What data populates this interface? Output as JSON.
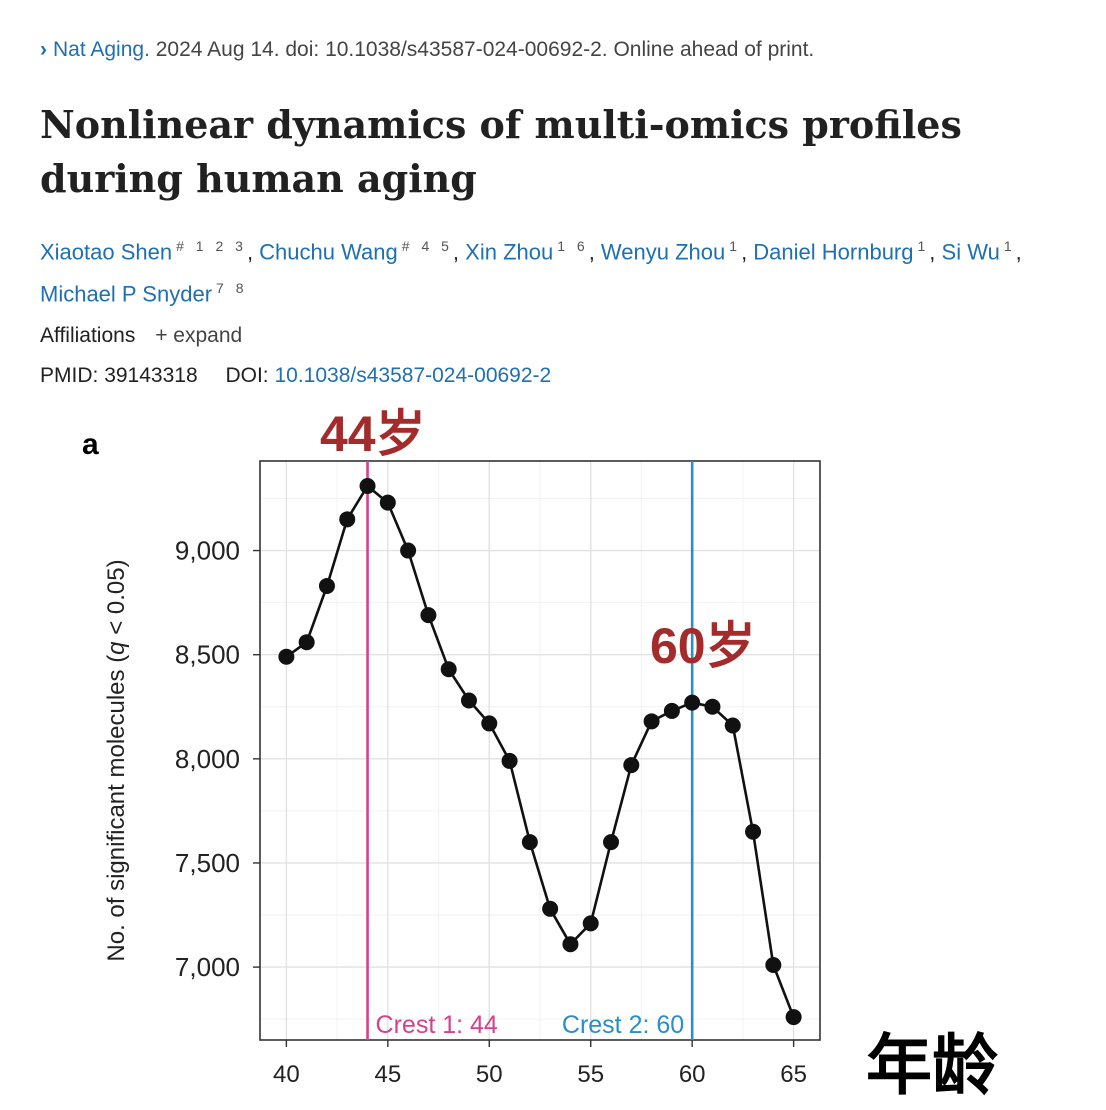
{
  "citation": {
    "chevron": "›",
    "journal": "Nat Aging.",
    "details": "2024 Aug 14. doi: 10.1038/s43587-024-00692-2. Online ahead of print."
  },
  "title": "Nonlinear dynamics of multi-omics profiles during human aging",
  "authors": [
    {
      "name": "Xiaotao Shen",
      "sup": "# 1 2 3"
    },
    {
      "name": "Chuchu Wang",
      "sup": "# 4 5"
    },
    {
      "name": "Xin Zhou",
      "sup": "1 6"
    },
    {
      "name": "Wenyu Zhou",
      "sup": "1"
    },
    {
      "name": "Daniel Hornburg",
      "sup": "1"
    },
    {
      "name": "Si Wu",
      "sup": "1"
    },
    {
      "name": "Michael P Snyder",
      "sup": "7 8"
    }
  ],
  "affiliations": {
    "label": "Affiliations",
    "expand": "+ expand"
  },
  "ids": {
    "pmid_label": "PMID:",
    "pmid": "39143318",
    "doi_label": "DOI:",
    "doi": "10.1038/s43587-024-00692-2"
  },
  "figure": {
    "panel_letter": "a",
    "annotation_44": "44岁",
    "annotation_60": "60岁",
    "age_label_cn": "年龄"
  },
  "chart_data": {
    "type": "line",
    "ylabel_prefix": "No. of significant molecules (",
    "ylabel_q": "q",
    "ylabel_suffix": " < 0.05)",
    "xlabel": "",
    "xlim": [
      38.7,
      66.3
    ],
    "ylim": [
      6650,
      9430
    ],
    "xticks": [
      40,
      45,
      50,
      55,
      60,
      65
    ],
    "yticks": [
      7000,
      7500,
      8000,
      8500,
      9000
    ],
    "ytick_labels": [
      "7,000",
      "7,500",
      "8,000",
      "8,500",
      "9,000"
    ],
    "grid": true,
    "x": [
      40,
      41,
      42,
      43,
      44,
      45,
      46,
      47,
      48,
      49,
      50,
      51,
      52,
      53,
      54,
      55,
      56,
      57,
      58,
      59,
      60,
      61,
      62,
      63,
      64,
      65
    ],
    "y": [
      8490,
      8560,
      8830,
      9150,
      9310,
      9230,
      9000,
      8690,
      8430,
      8280,
      8170,
      7990,
      7600,
      7280,
      7110,
      7210,
      7600,
      7970,
      8180,
      8230,
      8270,
      8250,
      8160,
      7650,
      7010,
      6760
    ],
    "crests": [
      {
        "x": 44,
        "label": "Crest 1: 44",
        "color": "#d6408c"
      },
      {
        "x": 60,
        "label": "Crest 2: 60",
        "color": "#2a8fc4"
      }
    ],
    "line_color": "#111111"
  }
}
